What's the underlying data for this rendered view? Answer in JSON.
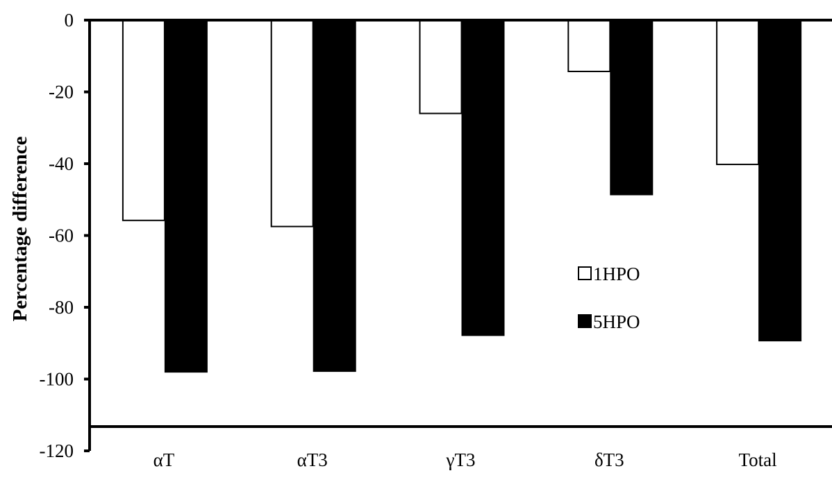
{
  "chart_data": {
    "type": "bar",
    "title": "",
    "xlabel": "",
    "ylabel": "Percentage difference",
    "ylim": [
      -120,
      0
    ],
    "yticks": [
      0,
      -20,
      -40,
      -60,
      -80,
      -100,
      -120
    ],
    "ytick_labels": [
      "0",
      "-20",
      "-40",
      "-60",
      "-80",
      "-100",
      "-120"
    ],
    "grid": false,
    "legend_position": "center-right",
    "categories": [
      "αT",
      "αT3",
      "γT3",
      "δT3",
      "Total"
    ],
    "series": [
      {
        "name": "1HPO",
        "fill": "#ffffff",
        "stroke": "#000000",
        "values": [
          -55.8,
          -57.5,
          -26.0,
          -14.3,
          -40.2
        ]
      },
      {
        "name": "5HPO",
        "fill": "#000000",
        "stroke": "#000000",
        "values": [
          -98.0,
          -97.8,
          -87.8,
          -48.6,
          -89.3
        ]
      }
    ]
  }
}
